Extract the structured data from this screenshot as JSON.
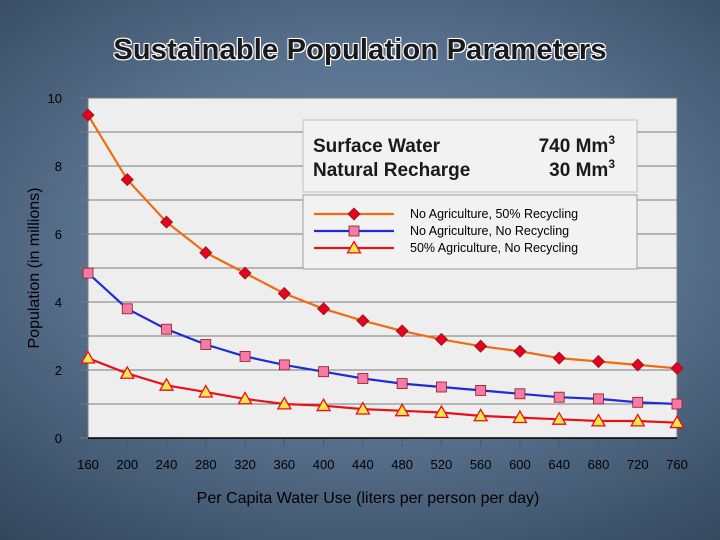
{
  "chart_data": {
    "type": "line",
    "title": "Sustainable Population Parameters",
    "xlabel": "Per Capita Water Use  (liters per person per day)",
    "ylabel": "Population  (in millions)",
    "xlim": [
      160,
      760
    ],
    "ylim": [
      0,
      10
    ],
    "x_ticks": [
      "160",
      "200",
      "240",
      "280",
      "320",
      "360",
      "400",
      "440",
      "480",
      "520",
      "560",
      "600",
      "640",
      "680",
      "720",
      "760"
    ],
    "y_ticks": [
      "0",
      "2",
      "4",
      "6",
      "8",
      "10"
    ],
    "grid": "horizontal",
    "legend_position": "right",
    "info_box": {
      "rows": [
        {
          "label": "Surface Water",
          "value": "740 Mm",
          "sup": "3"
        },
        {
          "label": "Natural Recharge",
          "value": "30 Mm",
          "sup": "3"
        }
      ]
    },
    "x": [
      160,
      200,
      240,
      280,
      320,
      360,
      400,
      440,
      480,
      520,
      560,
      600,
      640,
      680,
      720,
      760
    ],
    "series": [
      {
        "name": "No Agriculture, 50% Recycling",
        "color": "#f06a10",
        "marker": "diamond",
        "marker_color": "#e8001f",
        "values": [
          9.5,
          7.6,
          6.35,
          5.45,
          4.85,
          4.25,
          3.8,
          3.45,
          3.15,
          2.9,
          2.7,
          2.55,
          2.35,
          2.25,
          2.15,
          2.05
        ]
      },
      {
        "name": "No Agriculture, No Recycling",
        "color": "#1f2bd6",
        "marker": "square",
        "marker_color": "#f57aa6",
        "values": [
          4.85,
          3.8,
          3.2,
          2.75,
          2.4,
          2.15,
          1.95,
          1.75,
          1.6,
          1.5,
          1.4,
          1.3,
          1.2,
          1.15,
          1.05,
          1.0
        ]
      },
      {
        "name": "50% Agriculture, No Recycling",
        "color": "#e8101a",
        "marker": "triangle",
        "marker_color": "#f3e64a",
        "values": [
          2.35,
          1.9,
          1.55,
          1.35,
          1.15,
          1.0,
          0.95,
          0.85,
          0.8,
          0.75,
          0.65,
          0.6,
          0.55,
          0.5,
          0.5,
          0.45
        ]
      }
    ]
  }
}
